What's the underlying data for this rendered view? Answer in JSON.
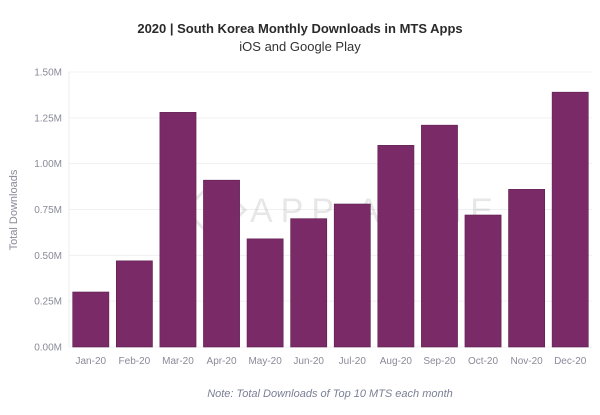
{
  "chart_data": {
    "type": "bar",
    "title": "2020 | South Korea Monthly Downloads in MTS Apps",
    "subtitle": "iOS and Google Play",
    "ylabel": "Total Downloads",
    "xlabel": "",
    "categories": [
      "Jan-20",
      "Feb-20",
      "Mar-20",
      "Apr-20",
      "May-20",
      "Jun-20",
      "Jul-20",
      "Aug-20",
      "Sep-20",
      "Oct-20",
      "Nov-20",
      "Dec-20"
    ],
    "values": [
      0.3,
      0.47,
      1.28,
      0.91,
      0.59,
      0.7,
      0.78,
      1.1,
      1.21,
      0.72,
      0.86,
      1.39
    ],
    "unit": "M",
    "ylim": [
      0,
      1.5
    ],
    "yticks": [
      "0.00M",
      "0.25M",
      "0.50M",
      "0.75M",
      "1.00M",
      "1.25M",
      "1.50M"
    ],
    "grid": true,
    "bar_color": "#7b2a68",
    "note": "Note: Total Downloads of Top 10 MTS each month",
    "watermark": "APP ANNIE"
  }
}
